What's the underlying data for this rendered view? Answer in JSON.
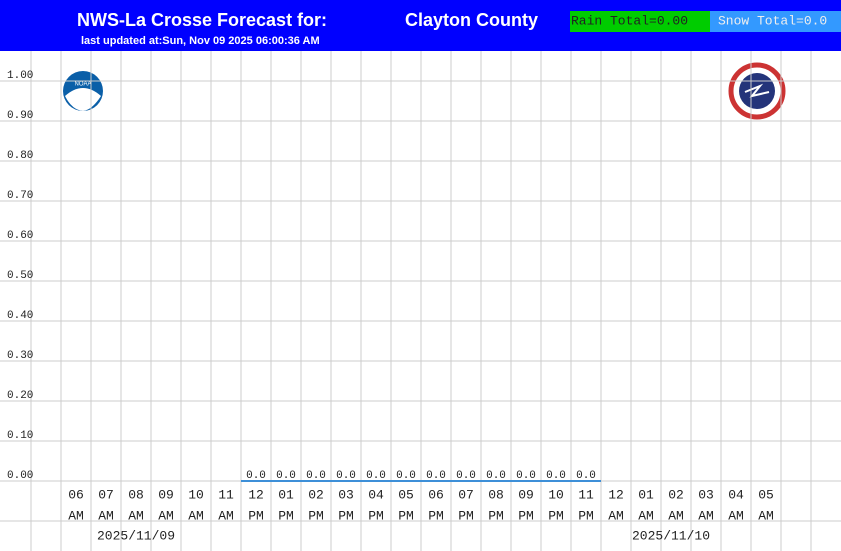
{
  "chart_data": {
    "type": "bar",
    "title": "NWS-La Crosse Forecast for:",
    "location": "Clayton County",
    "subtitle": "last updated at:Sun, Nov 09 2025 06:00:36 AM",
    "rain_total": "Rain Total=0.00",
    "snow_total": "Snow Total=0.0",
    "categories": [
      [
        "06",
        "AM"
      ],
      [
        "07",
        "AM"
      ],
      [
        "08",
        "AM"
      ],
      [
        "09",
        "AM"
      ],
      [
        "10",
        "AM"
      ],
      [
        "11",
        "AM"
      ],
      [
        "12",
        "PM"
      ],
      [
        "01",
        "PM"
      ],
      [
        "02",
        "PM"
      ],
      [
        "03",
        "PM"
      ],
      [
        "04",
        "PM"
      ],
      [
        "05",
        "PM"
      ],
      [
        "06",
        "PM"
      ],
      [
        "07",
        "PM"
      ],
      [
        "08",
        "PM"
      ],
      [
        "09",
        "PM"
      ],
      [
        "10",
        "PM"
      ],
      [
        "11",
        "PM"
      ],
      [
        "12",
        "AM"
      ],
      [
        "01",
        "AM"
      ],
      [
        "02",
        "AM"
      ],
      [
        "03",
        "AM"
      ],
      [
        "04",
        "AM"
      ],
      [
        "05",
        "AM"
      ]
    ],
    "dates": [
      "2025/11/09",
      "2025/11/10"
    ],
    "values": [
      null,
      null,
      null,
      null,
      null,
      null,
      0,
      0,
      0,
      0,
      0,
      0,
      0,
      0,
      0,
      0,
      0,
      0,
      null,
      null,
      null,
      null,
      null,
      null
    ],
    "value_labels": [
      null,
      null,
      null,
      null,
      null,
      null,
      "0.0",
      "0.0",
      "0.0",
      "0.0",
      "0.0",
      "0.0",
      "0.0",
      "0.0",
      "0.0",
      "0.0",
      "0.0",
      "0.0",
      null,
      null,
      null,
      null,
      null,
      null
    ],
    "color": "#3d8fd8",
    "ylim": [
      0,
      1.075
    ],
    "yticks": [
      {
        "value": 0,
        "label": "0.00"
      },
      {
        "value": 0.1,
        "label": "0.10"
      },
      {
        "value": 0.2,
        "label": "0.20"
      },
      {
        "value": 0.3,
        "label": "0.30"
      },
      {
        "value": 0.4,
        "label": "0.40"
      },
      {
        "value": 0.5,
        "label": "0.50"
      },
      {
        "value": 0.6,
        "label": "0.60"
      },
      {
        "value": 0.7,
        "label": "0.70"
      },
      {
        "value": 0.8,
        "label": "0.80"
      },
      {
        "value": 0.9,
        "label": "0.90"
      },
      {
        "value": 1,
        "label": "1.00"
      }
    ],
    "grid": true
  }
}
